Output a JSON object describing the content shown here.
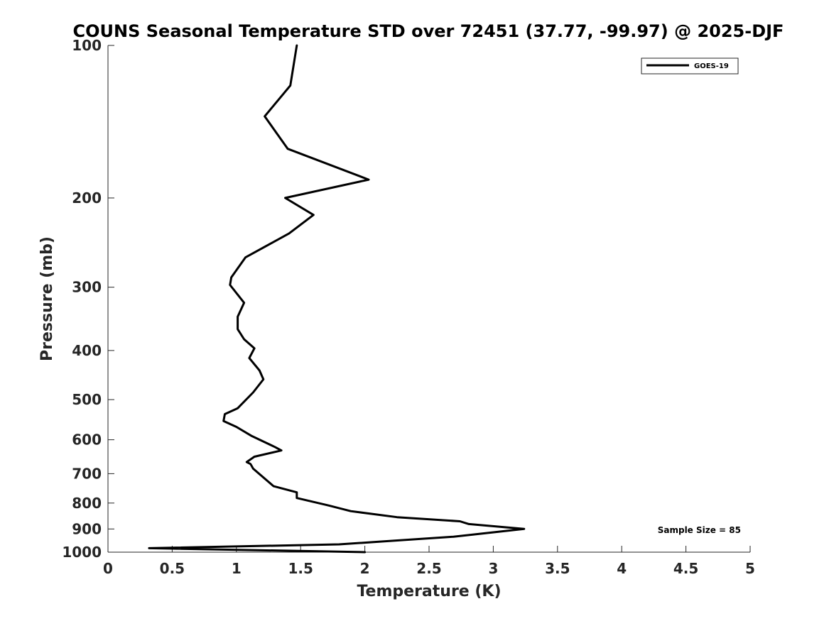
{
  "chart_data": {
    "type": "line",
    "title": "COUNS Seasonal Temperature STD over 72451 (37.77, -99.97) @ 2025-DJF",
    "xlabel": "Temperature (K)",
    "ylabel": "Pressure (mb)",
    "xlim": [
      0,
      5
    ],
    "ylim": [
      1000,
      100
    ],
    "y_scale": "log",
    "y_reversed": true,
    "x_ticks": [
      "0",
      "0.5",
      "1",
      "1.5",
      "2",
      "2.5",
      "3",
      "3.5",
      "4",
      "4.5",
      "5"
    ],
    "y_ticks": [
      "100",
      "200",
      "300",
      "400",
      "500",
      "600",
      "700",
      "800",
      "900",
      "1000"
    ],
    "grid": false,
    "legend_position": "top-right",
    "series": [
      {
        "name": "GOES-19",
        "color": "#000000",
        "x": [
          1.47,
          1.42,
          1.22,
          1.4,
          2.03,
          1.38,
          1.6,
          1.41,
          1.07,
          0.96,
          0.95,
          1.06,
          1.01,
          1.01,
          1.06,
          1.14,
          1.1,
          1.18,
          1.21,
          1.13,
          1.01,
          0.91,
          0.9,
          1.0,
          1.12,
          1.3,
          1.35,
          1.14,
          1.08,
          1.11,
          1.13,
          1.29,
          1.47,
          1.47,
          1.72,
          1.89,
          2.25,
          2.74,
          2.81,
          3.24,
          2.69,
          1.8,
          0.32,
          2.0
        ],
        "y": [
          100,
          120,
          138,
          160,
          184,
          200,
          216,
          235,
          262,
          287,
          297,
          322,
          343,
          363,
          380,
          396,
          414,
          438,
          456,
          484,
          520,
          534,
          551,
          566,
          590,
          620,
          630,
          648,
          664,
          670,
          684,
          741,
          762,
          782,
          809,
          830,
          853,
          869,
          880,
          900,
          932,
          965,
          982,
          1000
        ]
      }
    ],
    "annotations": [
      "Sample Size = 85"
    ]
  }
}
